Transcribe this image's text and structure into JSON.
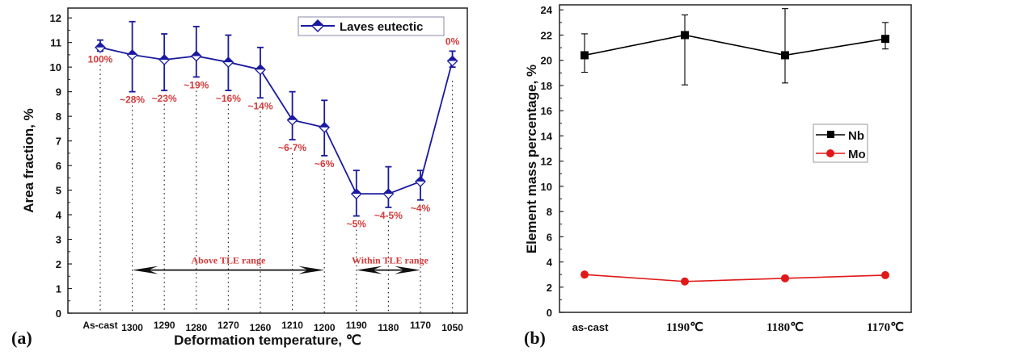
{
  "chart_data": [
    {
      "type": "line",
      "panel_label": "(a)",
      "xlabel": "Deformation temperature, ℃",
      "ylabel": "Area fraction, %",
      "ylim": [
        0,
        12.4
      ],
      "yticks": [
        "0",
        "1",
        "2",
        "3",
        "4",
        "5",
        "6",
        "7",
        "8",
        "9",
        "10",
        "11",
        "12"
      ],
      "categories": [
        "As-cast",
        "1300",
        "1290",
        "1280",
        "1270",
        "1260",
        "1210",
        "1200",
        "1190",
        "1180",
        "1170",
        "1050"
      ],
      "series": [
        {
          "name": "Laves eutectic",
          "color": "#1a1aa0",
          "values": [
            10.8,
            10.5,
            10.3,
            10.45,
            10.2,
            9.9,
            7.85,
            7.55,
            4.85,
            4.85,
            5.35,
            10.25
          ],
          "err_low": [
            10.65,
            9.0,
            9.05,
            9.6,
            9.05,
            8.75,
            7.05,
            6.4,
            3.95,
            4.3,
            4.6,
            10.0
          ],
          "err_high": [
            11.1,
            11.85,
            11.35,
            11.65,
            11.3,
            10.8,
            9.0,
            8.65,
            5.8,
            5.95,
            5.8,
            10.65
          ]
        }
      ],
      "annotations": [
        "100%",
        "~28%",
        "~23%",
        "~19%",
        "~16%",
        "~14%",
        "~6-7%",
        "~6%",
        "~5%",
        "~4-5%",
        "~4%",
        "0%"
      ],
      "annotation_color": "#d23a3a",
      "ranges": [
        {
          "label": "Above TLE range",
          "from": "1300",
          "to": "1200",
          "y": 1.75
        },
        {
          "label": "Within TLE range",
          "from": "1190",
          "to": "1170",
          "y": 1.75
        }
      ],
      "legend_position": "top-right",
      "grid": false
    },
    {
      "type": "line",
      "panel_label": "(b)",
      "xlabel": "",
      "ylabel": "Element mass percentage, %",
      "ylim": [
        0,
        24.4
      ],
      "yticks": [
        "0",
        "2",
        "4",
        "6",
        "8",
        "10",
        "12",
        "14",
        "16",
        "18",
        "20",
        "22",
        "24"
      ],
      "categories": [
        "as-cast",
        "1190℃",
        "1180℃",
        "1170℃"
      ],
      "series": [
        {
          "name": "Nb",
          "color": "#000000",
          "marker": "square",
          "values": [
            20.4,
            22.0,
            20.4,
            21.7
          ],
          "err_low": [
            19.05,
            18.05,
            18.2,
            20.9
          ],
          "err_high": [
            22.1,
            23.6,
            24.1,
            23.0
          ]
        },
        {
          "name": "Mo",
          "color": "#e01818",
          "marker": "circle",
          "values": [
            3.0,
            2.45,
            2.7,
            2.95
          ]
        }
      ],
      "legend_position": "center-right",
      "grid": false
    }
  ]
}
